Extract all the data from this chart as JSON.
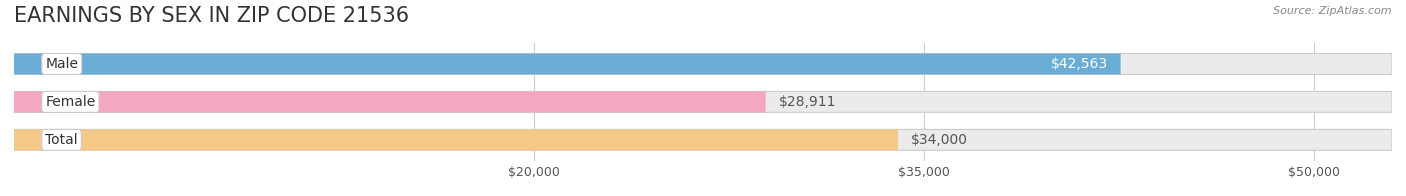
{
  "title": "EARNINGS BY SEX IN ZIP CODE 21536",
  "source": "Source: ZipAtlas.com",
  "categories": [
    "Male",
    "Female",
    "Total"
  ],
  "values": [
    42563,
    28911,
    34000
  ],
  "bar_colors": [
    "#6aaed6",
    "#f4a8c0",
    "#f5c888"
  ],
  "bar_bg_color": "#ebebeb",
  "label_bg_color": "#ffffff",
  "value_labels": [
    "$42,563",
    "$28,911",
    "$34,000"
  ],
  "tick_labels": [
    "$20,000",
    "$35,000",
    "$50,000"
  ],
  "tick_values": [
    20000,
    35000,
    50000
  ],
  "xmin": 0,
  "xmax": 53000,
  "title_fontsize": 15,
  "bar_label_fontsize": 10,
  "tick_fontsize": 9,
  "source_fontsize": 8,
  "background_color": "#ffffff",
  "bar_height": 0.55,
  "bar_gap": 0.18
}
